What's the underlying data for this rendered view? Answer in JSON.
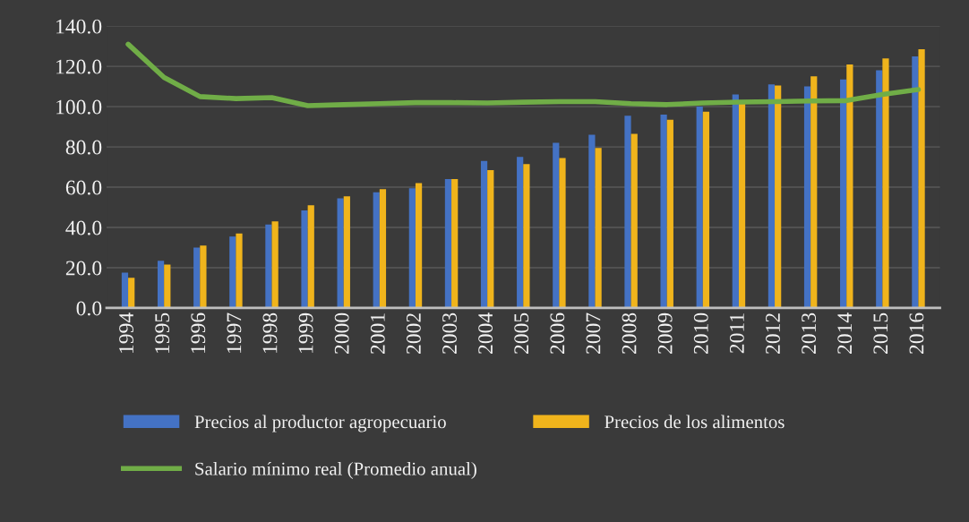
{
  "chart_data": {
    "type": "bar",
    "categories": [
      "1994",
      "1995",
      "1996",
      "1997",
      "1998",
      "1999",
      "2000",
      "2001",
      "2002",
      "2003",
      "2004",
      "2005",
      "2006",
      "2007",
      "2008",
      "2009",
      "2010",
      "2011",
      "2012",
      "2013",
      "2014",
      "2015",
      "2016"
    ],
    "series": [
      {
        "name": "Precios al productor agropecuario",
        "color": "#4472c4",
        "values": [
          17.5,
          23.5,
          30,
          35.5,
          41.5,
          48.5,
          54.5,
          57.5,
          59.5,
          64,
          73,
          75,
          82,
          86,
          95.5,
          96,
          100,
          106,
          111,
          110,
          113.5,
          118,
          125
        ]
      },
      {
        "name": "Precios de los alimentos",
        "color": "#f0b41c",
        "values": [
          15,
          21.5,
          31,
          37,
          43,
          51,
          55.5,
          59,
          62,
          64,
          68.5,
          71.5,
          74.5,
          79.5,
          86.5,
          93.5,
          97.5,
          102,
          110.5,
          115,
          121,
          124,
          128.5
        ]
      },
      {
        "name": "Salario mínimo real (Promedio anual)",
        "color": "#70ad47",
        "type": "line",
        "values": [
          131,
          114.5,
          105,
          104,
          104.5,
          100.5,
          101,
          101.5,
          102,
          102,
          101.8,
          102.2,
          102.5,
          102.5,
          101.5,
          101,
          101.8,
          102.3,
          102.5,
          102.8,
          103,
          106,
          108.5
        ]
      }
    ],
    "ylim": [
      0,
      140
    ],
    "yticks": [
      {
        "value": 0,
        "label": "0.0"
      },
      {
        "value": 20,
        "label": "20.0"
      },
      {
        "value": 40,
        "label": "40.0"
      },
      {
        "value": 60,
        "label": "60.0"
      },
      {
        "value": 80,
        "label": "80.0"
      },
      {
        "value": 100,
        "label": "100.0"
      },
      {
        "value": 120,
        "label": "120.0"
      },
      {
        "value": 140,
        "label": "140.0"
      }
    ],
    "grid": "y",
    "legend": "bottom"
  }
}
